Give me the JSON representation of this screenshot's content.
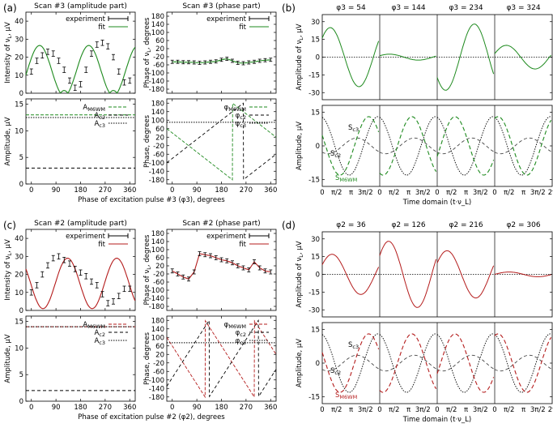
{
  "panel_letters": [
    "(a)",
    "(b)",
    "(c)",
    "(d)"
  ],
  "colors": {
    "green": "#1e8a1e",
    "red": "#b41c1c",
    "black": "#000000",
    "gray": "#444444"
  },
  "chart_data": [
    {
      "id": "a-amp",
      "type": "line",
      "title": "Scan #3 (amplitude part)",
      "ylabel": "Intensity of ν_L, μV",
      "ylim": [
        0,
        45
      ],
      "xlim": [
        -20,
        380
      ],
      "yticks": [
        0,
        10,
        20,
        30,
        40
      ],
      "xticks": [
        0,
        90,
        180,
        270,
        360
      ],
      "legend": [
        "experiment",
        "fit"
      ],
      "color": "green",
      "series": [
        {
          "name": "experiment",
          "x": [
            0,
            20,
            40,
            60,
            80,
            100,
            120,
            140,
            160,
            180,
            200,
            220,
            240,
            260,
            280,
            300,
            320,
            340,
            360
          ],
          "y": [
            12,
            18,
            21,
            23,
            22,
            18,
            13,
            7,
            3,
            5,
            13,
            22,
            27,
            28,
            26,
            20,
            12,
            6,
            7
          ],
          "err": 1.5
        },
        {
          "name": "fit",
          "kind": "fit-amp",
          "A": 14,
          "B": 12.5,
          "phase": -60
        }
      ]
    },
    {
      "id": "a-phase",
      "type": "line",
      "title": "Scan #3 (phase part)",
      "ylabel": "Phase of ν_L, degrees",
      "ylim": [
        -200,
        200
      ],
      "xlim": [
        -20,
        380
      ],
      "yticks": [
        -180,
        -140,
        -100,
        -60,
        -20,
        20,
        60,
        100,
        140,
        180
      ],
      "xticks": [
        0,
        90,
        180,
        270,
        360
      ],
      "legend": [
        "experiment",
        "fit"
      ],
      "color": "green",
      "series": [
        {
          "name": "experiment",
          "x": [
            0,
            20,
            40,
            60,
            80,
            100,
            120,
            140,
            160,
            180,
            200,
            220,
            240,
            260,
            280,
            300,
            320,
            340,
            360
          ],
          "y": [
            -45,
            -45,
            -47,
            -47,
            -48,
            -50,
            -48,
            -45,
            -43,
            -35,
            -30,
            -40,
            -50,
            -52,
            -48,
            -45,
            -40,
            -37,
            -35
          ],
          "err": 8
        },
        {
          "name": "fit",
          "kind": "fit-phase-g"
        }
      ]
    },
    {
      "id": "a-decamp",
      "type": "line",
      "ylabel": "Amplitude, μV",
      "ylim": [
        0,
        16
      ],
      "xlim": [
        -20,
        380
      ],
      "yticks": [
        0,
        5,
        10,
        15
      ],
      "xticks": [
        0,
        90,
        180,
        270,
        360
      ],
      "xlabel": "Phase of excitation pulse #3 (φ3), degrees",
      "legend": [
        "A_M6WM",
        "A_c2",
        "A_c3"
      ],
      "color": "green",
      "series": [
        {
          "name": "A_M6WM",
          "const": 13
        },
        {
          "name": "A_c2",
          "const": 3
        },
        {
          "name": "A_c3",
          "const": 12.5
        }
      ]
    },
    {
      "id": "a-decphase",
      "type": "line",
      "ylabel": "Phase, degrees",
      "ylim": [
        -200,
        200
      ],
      "xlim": [
        -20,
        380
      ],
      "yticks": [
        -180,
        -140,
        -100,
        -60,
        -20,
        20,
        60,
        100,
        140,
        180
      ],
      "xticks": [
        0,
        90,
        180,
        270,
        360
      ],
      "legend": [
        "φ_M6WM",
        "φ_c2",
        "φ_c3"
      ],
      "color": "green",
      "series": [
        {
          "name": "φ_M6WM",
          "kind": "saw",
          "slope": -1,
          "offset": 40
        },
        {
          "name": "φ_c2",
          "kind": "saw",
          "slope": 1,
          "offset": -80
        },
        {
          "name": "φ_c3",
          "const": 90
        }
      ]
    },
    {
      "id": "b-time",
      "type": "line",
      "ylabel": "Amplitude of ν_L, μV",
      "ylim": [
        -36,
        36
      ],
      "yticks": [
        -30,
        -15,
        0,
        15,
        30
      ],
      "column_titles": [
        "φ3 = 54",
        "φ3 = 144",
        "φ3 = 234",
        "φ3 = 324"
      ],
      "phases": [
        54,
        144,
        234,
        324
      ],
      "color": "green"
    },
    {
      "id": "b-decomp",
      "type": "line",
      "ylabel": "Amplitude, μV",
      "ylim": [
        -18,
        18
      ],
      "yticks": [
        -15,
        0,
        15
      ],
      "xlabel": "Time domain (t·ν_L)",
      "xticklabels": [
        "0",
        "π/2",
        "π",
        "3π/2",
        "2π"
      ],
      "series_labels": [
        "S_c3",
        "S_c2",
        "S_M6WM"
      ],
      "color": "green"
    },
    {
      "id": "c-amp",
      "type": "line",
      "title": "Scan #2 (amplitude part)",
      "ylabel": "Intensity of ν_L, μV",
      "ylim": [
        0,
        45
      ],
      "xlim": [
        -20,
        380
      ],
      "yticks": [
        0,
        10,
        20,
        30,
        40
      ],
      "xticks": [
        0,
        90,
        180,
        270,
        360
      ],
      "legend": [
        "experiment",
        "fit"
      ],
      "color": "red",
      "series": [
        {
          "name": "experiment",
          "x": [
            0,
            20,
            40,
            60,
            80,
            100,
            120,
            140,
            160,
            180,
            200,
            220,
            240,
            260,
            280,
            300,
            320,
            340,
            360
          ],
          "y": [
            10,
            14,
            20,
            25,
            29,
            30,
            28,
            26,
            23,
            21,
            19,
            16,
            14,
            9,
            4,
            5,
            8,
            12,
            12
          ],
          "err": 1.5
        },
        {
          "name": "fit",
          "kind": "fit-amp",
          "A": 14,
          "B": 15,
          "phase": 95
        }
      ]
    },
    {
      "id": "c-phase",
      "type": "line",
      "title": "Scan #2 (phase part)",
      "ylabel": "Phase of ν_L, degrees",
      "ylim": [
        -200,
        200
      ],
      "xlim": [
        -20,
        380
      ],
      "yticks": [
        -180,
        -140,
        -100,
        -60,
        -20,
        20,
        60,
        100,
        140,
        180
      ],
      "xticks": [
        0,
        90,
        180,
        270,
        360
      ],
      "legend": [
        "experiment",
        "fit"
      ],
      "color": "red",
      "series": [
        {
          "name": "experiment",
          "x": [
            0,
            20,
            40,
            60,
            80,
            100,
            120,
            140,
            160,
            180,
            200,
            220,
            240,
            260,
            280,
            300,
            320,
            340,
            360
          ],
          "y": [
            -5,
            -20,
            -35,
            -45,
            -10,
            80,
            75,
            70,
            60,
            50,
            45,
            35,
            20,
            10,
            0,
            40,
            10,
            -5,
            -10
          ],
          "err": 10
        },
        {
          "name": "fit",
          "kind": "fit-phase-r"
        }
      ]
    },
    {
      "id": "c-decamp",
      "type": "line",
      "ylabel": "Amplitude, μV",
      "ylim": [
        0,
        16
      ],
      "xlim": [
        -20,
        380
      ],
      "yticks": [
        0,
        5,
        10,
        15
      ],
      "xticks": [
        0,
        90,
        180,
        270,
        360
      ],
      "xlabel": "Phase of excitation pulse #2 (φ2), degrees",
      "legend": [
        "A_M6WM",
        "A_c2",
        "A_c3"
      ],
      "color": "red",
      "series": [
        {
          "name": "A_M6WM",
          "const": 14
        },
        {
          "name": "A_c2",
          "const": 2
        },
        {
          "name": "A_c3",
          "const": 14
        }
      ]
    },
    {
      "id": "c-decphase",
      "type": "line",
      "ylabel": "Phase, degrees",
      "ylim": [
        -200,
        200
      ],
      "xlim": [
        -20,
        380
      ],
      "yticks": [
        -180,
        -140,
        -100,
        -60,
        -20,
        20,
        60,
        100,
        140,
        180
      ],
      "xticks": [
        0,
        90,
        180,
        270,
        360
      ],
      "legend": [
        "φ_M6WM",
        "φ_c2",
        "φ_c3"
      ],
      "color": "red",
      "series": [
        {
          "name": "φ_M6WM",
          "kind": "saw",
          "slope": -2,
          "offset": 60
        },
        {
          "name": "φ_c2",
          "kind": "saw",
          "slope": 2,
          "offset": -90
        },
        {
          "name": "φ_c3",
          "const": 75
        }
      ]
    },
    {
      "id": "d-time",
      "type": "line",
      "ylabel": "Amplitude of ν_L, μV",
      "ylim": [
        -36,
        36
      ],
      "yticks": [
        -30,
        -15,
        0,
        15,
        30
      ],
      "column_titles": [
        "φ2 = 36",
        "φ2 = 126",
        "φ2 = 216",
        "φ2 = 306"
      ],
      "phases": [
        36,
        126,
        216,
        306
      ],
      "color": "red"
    },
    {
      "id": "d-decomp",
      "type": "line",
      "ylabel": "Amplitude, μV",
      "ylim": [
        -18,
        18
      ],
      "yticks": [
        -15,
        0,
        15
      ],
      "xlabel": "Time domain (t·ν_L)",
      "xticklabels": [
        "0",
        "π/2",
        "π",
        "3π/2",
        "2π"
      ],
      "series_labels": [
        "S_c3",
        "S_c2",
        "S_M6WM"
      ],
      "color": "red"
    }
  ]
}
